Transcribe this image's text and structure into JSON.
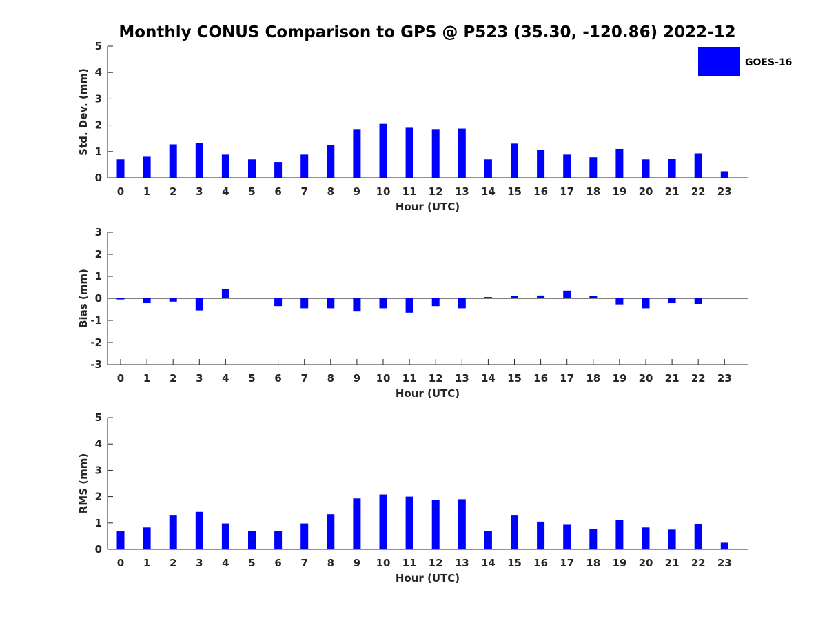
{
  "figure": {
    "title": "Monthly CONUS Comparison to GPS @ P523 (35.30, -120.86) 2022-12",
    "bar_color": "#0000ff",
    "legend": {
      "label": "GOES-16",
      "placement": "top-right"
    }
  },
  "chart_data": [
    {
      "type": "bar",
      "title": "",
      "xlabel": "Hour (UTC)",
      "ylabel": "Std. Dev. (mm)",
      "ylim": [
        0,
        5
      ],
      "yticks": [
        "0",
        "1",
        "2",
        "3",
        "4",
        "5"
      ],
      "categories": [
        "0",
        "1",
        "2",
        "3",
        "4",
        "5",
        "6",
        "7",
        "8",
        "9",
        "10",
        "11",
        "12",
        "13",
        "14",
        "15",
        "16",
        "17",
        "18",
        "19",
        "20",
        "21",
        "22",
        "23"
      ],
      "series": [
        {
          "name": "GOES-16",
          "color": "#0000ff",
          "values": [
            0.7,
            0.8,
            1.27,
            1.33,
            0.88,
            0.7,
            0.6,
            0.88,
            1.25,
            1.85,
            2.05,
            1.9,
            1.85,
            1.87,
            0.7,
            1.3,
            1.05,
            0.88,
            0.78,
            1.1,
            0.7,
            0.72,
            0.93,
            0.25
          ]
        }
      ]
    },
    {
      "type": "bar",
      "title": "",
      "xlabel": "Hour (UTC)",
      "ylabel": "Bias (mm)",
      "ylim": [
        -3,
        3
      ],
      "yticks": [
        "-3",
        "-2",
        "-1",
        "0",
        "1",
        "2",
        "3"
      ],
      "zero_line": true,
      "categories": [
        "0",
        "1",
        "2",
        "3",
        "4",
        "5",
        "6",
        "7",
        "8",
        "9",
        "10",
        "11",
        "12",
        "13",
        "14",
        "15",
        "16",
        "17",
        "18",
        "19",
        "20",
        "21",
        "22",
        "23"
      ],
      "series": [
        {
          "name": "GOES-16",
          "color": "#0000ff",
          "values": [
            -0.05,
            -0.22,
            -0.15,
            -0.55,
            0.43,
            0.03,
            -0.35,
            -0.45,
            -0.45,
            -0.6,
            -0.45,
            -0.65,
            -0.35,
            -0.45,
            0.06,
            0.1,
            0.13,
            0.35,
            0.12,
            -0.27,
            -0.45,
            -0.22,
            -0.25,
            0.0
          ]
        }
      ]
    },
    {
      "type": "bar",
      "title": "",
      "xlabel": "Hour (UTC)",
      "ylabel": "RMS (mm)",
      "ylim": [
        0,
        5
      ],
      "yticks": [
        "0",
        "1",
        "2",
        "3",
        "4",
        "5"
      ],
      "categories": [
        "0",
        "1",
        "2",
        "3",
        "4",
        "5",
        "6",
        "7",
        "8",
        "9",
        "10",
        "11",
        "12",
        "13",
        "14",
        "15",
        "16",
        "17",
        "18",
        "19",
        "20",
        "21",
        "22",
        "23"
      ],
      "series": [
        {
          "name": "GOES-16",
          "color": "#0000ff",
          "values": [
            0.68,
            0.83,
            1.28,
            1.42,
            0.98,
            0.7,
            0.68,
            0.98,
            1.33,
            1.93,
            2.08,
            2.0,
            1.88,
            1.9,
            0.7,
            1.28,
            1.05,
            0.93,
            0.78,
            1.12,
            0.83,
            0.75,
            0.95,
            0.25
          ]
        }
      ]
    }
  ]
}
